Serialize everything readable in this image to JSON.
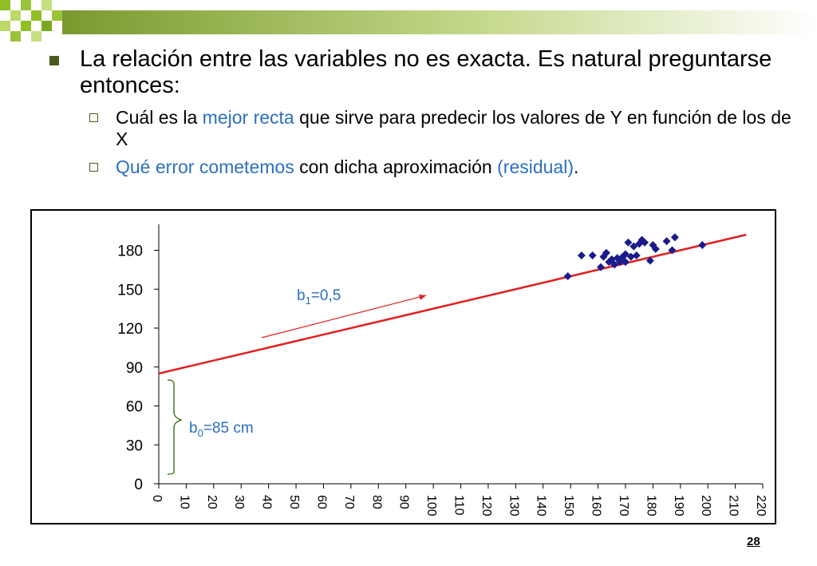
{
  "slide": {
    "bullet1": "La relación entre las variables no es exacta. Es natural preguntarse entonces:",
    "sub1_a": " Cuál es la ",
    "sub1_hl": "mejor recta",
    "sub1_b": " que sirve para predecir los valores de Y en función de los de X",
    "sub2_hl": "Qué error cometemos",
    "sub2_a": " con dicha aproximación ",
    "sub2_hl2": "(residual)",
    "sub2_b": ".",
    "page_number": "28"
  },
  "annotations": {
    "b1_label": "b",
    "b1_sub": "1",
    "b1_value": "=0,5",
    "b0_label": "b",
    "b0_sub": "0",
    "b0_value": "=85 cm"
  },
  "colors": {
    "points": "#1a1a8c",
    "line": "#e02020",
    "annotation": "#2b6fc2",
    "accent": "#8fbf24"
  },
  "chart_data": {
    "type": "scatter",
    "title": "",
    "xlabel": "",
    "ylabel": "",
    "xlim": [
      0,
      220
    ],
    "ylim": [
      0,
      200
    ],
    "xticks": [
      0,
      10,
      20,
      30,
      40,
      50,
      60,
      70,
      80,
      90,
      100,
      110,
      120,
      130,
      140,
      150,
      160,
      170,
      180,
      190,
      200,
      210,
      220
    ],
    "yticks": [
      0,
      30,
      60,
      90,
      120,
      150,
      180
    ],
    "grid": false,
    "points": [
      [
        149,
        160
      ],
      [
        154,
        176
      ],
      [
        158,
        176
      ],
      [
        161,
        167
      ],
      [
        162,
        175
      ],
      [
        163,
        178
      ],
      [
        164,
        171
      ],
      [
        165,
        173
      ],
      [
        166,
        169
      ],
      [
        167,
        174
      ],
      [
        168,
        171
      ],
      [
        169,
        175
      ],
      [
        170,
        177
      ],
      [
        170,
        171
      ],
      [
        171,
        186
      ],
      [
        172,
        175
      ],
      [
        173,
        183
      ],
      [
        174,
        176
      ],
      [
        175,
        185
      ],
      [
        176,
        188
      ],
      [
        177,
        186
      ],
      [
        179,
        172
      ],
      [
        180,
        184
      ],
      [
        181,
        181
      ],
      [
        185,
        187
      ],
      [
        187,
        180
      ],
      [
        188,
        190
      ],
      [
        198,
        184
      ]
    ],
    "fit_line": {
      "intercept": 85,
      "slope": 0.5,
      "x_range": [
        0,
        214
      ]
    }
  }
}
